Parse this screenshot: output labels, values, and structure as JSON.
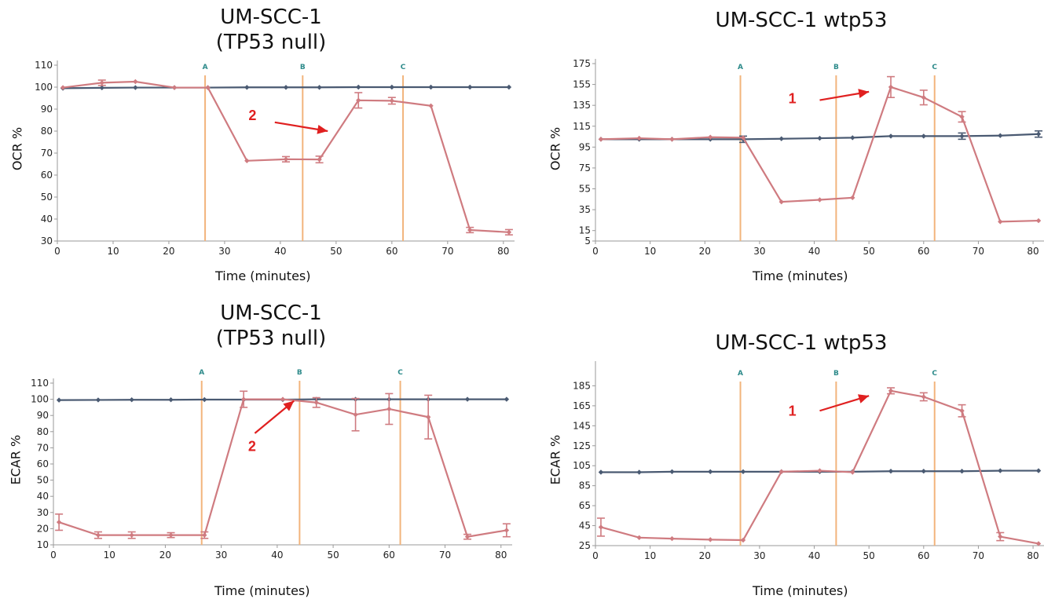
{
  "chart_data": [
    {
      "type": "line",
      "title_line1": "UM-SCC-1",
      "title_line2": "(TP53 null)",
      "xlabel": "Time (minutes)",
      "ylabel": "OCR %",
      "xlim": [
        0,
        82
      ],
      "ylim": [
        30,
        110
      ],
      "xticks": [
        0,
        10,
        20,
        30,
        40,
        50,
        60,
        70,
        80
      ],
      "yticks": [
        30,
        40,
        50,
        60,
        70,
        80,
        90,
        100,
        110
      ],
      "markers": [
        {
          "label": "A",
          "x": 26.5
        },
        {
          "label": "B",
          "x": 44
        },
        {
          "label": "C",
          "x": 62
        }
      ],
      "annotation": {
        "text": "2",
        "color": "#e02020",
        "text_at": [
          35,
          85
        ],
        "arrow_from": [
          39,
          84
        ],
        "arrow_to": [
          48.5,
          80
        ]
      },
      "series": [
        {
          "color": "#4a5a72",
          "x": [
            1,
            8,
            14,
            21,
            27,
            34,
            41,
            47,
            54,
            60,
            67,
            74,
            81
          ],
          "y": [
            99.5,
            99.7,
            99.8,
            99.8,
            99.8,
            99.9,
            99.9,
            99.9,
            100,
            100,
            100,
            100,
            100
          ],
          "err": [
            0,
            0,
            0,
            0,
            0,
            0,
            0,
            0,
            0,
            0,
            0,
            0,
            0
          ]
        },
        {
          "color": "#cf7b80",
          "x": [
            1,
            8,
            14,
            21,
            27,
            34,
            41,
            47,
            54,
            60,
            67,
            74,
            81
          ],
          "y": [
            99.8,
            102,
            102.5,
            99.8,
            99.8,
            66.5,
            67.2,
            67.1,
            94,
            93.8,
            91.5,
            35,
            34
          ],
          "err": [
            0,
            1.2,
            0,
            0,
            0,
            0,
            1.2,
            1.5,
            3.5,
            1.5,
            0,
            1.2,
            1.2
          ]
        }
      ]
    },
    {
      "type": "line",
      "title_line1": "UM-SCC-1 wtp53",
      "title_line2": "",
      "xlabel": "Time (minutes)",
      "ylabel": "OCR %",
      "xlim": [
        0,
        82
      ],
      "ylim": [
        5,
        175
      ],
      "xticks": [
        0,
        10,
        20,
        30,
        40,
        50,
        60,
        70,
        80
      ],
      "yticks": [
        5,
        15,
        35,
        55,
        75,
        95,
        115,
        135,
        155,
        175
      ],
      "markers": [
        {
          "label": "A",
          "x": 26.5
        },
        {
          "label": "B",
          "x": 44
        },
        {
          "label": "C",
          "x": 62
        }
      ],
      "annotation": {
        "text": "1",
        "color": "#e02020",
        "text_at": [
          36,
          137
        ],
        "arrow_from": [
          41,
          140
        ],
        "arrow_to": [
          50,
          148
        ]
      },
      "series": [
        {
          "color": "#4a5a72",
          "x": [
            1,
            8,
            14,
            21,
            27,
            34,
            41,
            47,
            54,
            60,
            67,
            74,
            81
          ],
          "y": [
            102.5,
            102.5,
            102.5,
            102.5,
            102.5,
            103,
            103.5,
            104,
            105.5,
            105.5,
            105.5,
            106,
            107.5
          ],
          "err": [
            0,
            0,
            0,
            0,
            3,
            0,
            0,
            0,
            0,
            0,
            3,
            0,
            3
          ]
        },
        {
          "color": "#cf7b80",
          "x": [
            1,
            8,
            14,
            21,
            27,
            34,
            41,
            47,
            54,
            60,
            67,
            74,
            81
          ],
          "y": [
            102.5,
            103.5,
            102.5,
            104.5,
            104,
            42.5,
            44.5,
            46.5,
            152.5,
            142.5,
            124,
            23.5,
            24.5
          ],
          "err": [
            0,
            0,
            0,
            0,
            0,
            0,
            0,
            0,
            10,
            7,
            5,
            0,
            0
          ]
        }
      ]
    },
    {
      "type": "line",
      "title_line1": "UM-SCC-1",
      "title_line2": "(TP53 null)",
      "xlabel": "Time (minutes)",
      "ylabel": "ECAR %",
      "xlim": [
        0,
        82
      ],
      "ylim": [
        10,
        110
      ],
      "xticks": [
        0,
        10,
        20,
        30,
        40,
        50,
        60,
        70,
        80
      ],
      "yticks": [
        10,
        20,
        30,
        40,
        50,
        60,
        70,
        80,
        90,
        100,
        110
      ],
      "markers": [
        {
          "label": "A",
          "x": 26.5
        },
        {
          "label": "B",
          "x": 44
        },
        {
          "label": "C",
          "x": 62
        }
      ],
      "annotation": {
        "text": "2",
        "color": "#e02020",
        "text_at": [
          35.5,
          68
        ],
        "arrow_from": [
          36,
          79
        ],
        "arrow_to": [
          43,
          99
        ]
      },
      "series": [
        {
          "color": "#4a5a72",
          "x": [
            1,
            8,
            14,
            21,
            27,
            34,
            41,
            47,
            54,
            60,
            67,
            74,
            81
          ],
          "y": [
            99.5,
            99.6,
            99.7,
            99.7,
            99.8,
            99.8,
            99.8,
            100,
            100,
            100,
            100,
            100,
            100
          ],
          "err": [
            0,
            0,
            0,
            0,
            0,
            0,
            0,
            0,
            0,
            0,
            0,
            0,
            0
          ]
        },
        {
          "color": "#cf7b80",
          "x": [
            1,
            8,
            14,
            21,
            27,
            34,
            41,
            47,
            54,
            60,
            67,
            74,
            81
          ],
          "y": [
            24,
            16,
            16,
            16,
            16,
            100,
            100,
            98,
            90.5,
            94,
            89,
            15,
            19
          ],
          "err": [
            5,
            2,
            2,
            1.5,
            2,
            5,
            0,
            3,
            10,
            9.5,
            13.5,
            1.5,
            4
          ]
        }
      ]
    },
    {
      "type": "line",
      "title_line1": "UM-SCC-1 wtp53",
      "title_line2": "",
      "xlabel": "Time (minutes)",
      "ylabel": "ECAR %",
      "xlim": [
        0,
        82
      ],
      "ylim": [
        25,
        205
      ],
      "xticks": [
        0,
        10,
        20,
        30,
        40,
        50,
        60,
        70,
        80
      ],
      "yticks": [
        25,
        45,
        65,
        85,
        105,
        125,
        145,
        165,
        185
      ],
      "markers": [
        {
          "label": "A",
          "x": 26.5
        },
        {
          "label": "B",
          "x": 44
        },
        {
          "label": "C",
          "x": 62
        }
      ],
      "annotation": {
        "text": "1",
        "color": "#e02020",
        "text_at": [
          36,
          155
        ],
        "arrow_from": [
          41,
          160
        ],
        "arrow_to": [
          50,
          175
        ]
      },
      "series": [
        {
          "color": "#4a5a72",
          "x": [
            1,
            8,
            14,
            21,
            27,
            34,
            41,
            47,
            54,
            60,
            67,
            74,
            81
          ],
          "y": [
            98.5,
            98.5,
            99,
            99,
            99,
            99,
            99,
            99,
            99.5,
            99.5,
            99.5,
            100,
            100
          ],
          "err": [
            0,
            0,
            0,
            0,
            0,
            0,
            0,
            0,
            0,
            0,
            0,
            0,
            0
          ]
        },
        {
          "color": "#cf7b80",
          "x": [
            1,
            8,
            14,
            21,
            27,
            34,
            41,
            47,
            54,
            60,
            67,
            74,
            81
          ],
          "y": [
            43.5,
            33,
            32,
            31,
            30.5,
            99,
            100,
            98.5,
            180,
            174,
            160,
            34,
            27
          ],
          "err": [
            9,
            0,
            0,
            0,
            0,
            0,
            0,
            0,
            3,
            4,
            6,
            4,
            0
          ]
        }
      ]
    }
  ]
}
